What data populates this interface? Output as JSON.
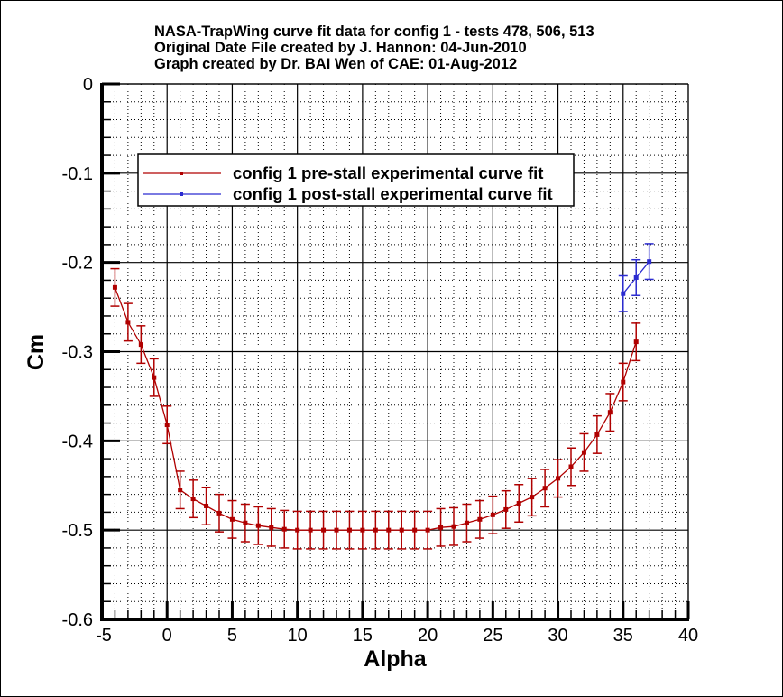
{
  "title_lines": [
    "NASA-TrapWing curve fit data for config 1 - tests 478, 506, 513",
    "Original Date File created by J. Hannon: 04-Jun-2010",
    "Graph created by Dr. BAI Wen of CAE: 01-Aug-2012"
  ],
  "colors": {
    "pre_stall": "#b00000",
    "post_stall": "#2b2bd0",
    "axis": "#000000",
    "grid": "#000000",
    "background": "#ffffff"
  },
  "chart_data": {
    "type": "line",
    "title": "NASA-TrapWing curve fit data for config 1 - tests 478, 506, 513",
    "subtitle": [
      "Original Date File created by J. Hannon: 04-Jun-2010",
      "Graph created by Dr. BAI Wen of CAE: 01-Aug-2012"
    ],
    "xlabel": "Alpha",
    "ylabel": "Cm",
    "xlim": [
      -5,
      40
    ],
    "ylim": [
      -0.6,
      0
    ],
    "xticks": [
      -5,
      0,
      5,
      10,
      15,
      20,
      25,
      30,
      35,
      40
    ],
    "yticks": [
      0,
      -0.1,
      -0.2,
      -0.3,
      -0.4,
      -0.5,
      -0.6
    ],
    "xtick_labels": [
      "-5",
      "0",
      "5",
      "10",
      "15",
      "20",
      "25",
      "30",
      "35",
      "40"
    ],
    "ytick_labels": [
      "0",
      "-0.1",
      "-0.2",
      "-0.3",
      "-0.4",
      "-0.5",
      "-0.6"
    ],
    "x_minor_step": 1,
    "y_minor_step": 0.02,
    "grid": true,
    "legend_position": "upper-left-inside",
    "error_bars": true,
    "series": [
      {
        "name": "config 1 pre-stall experimental curve fit",
        "color": "#b00000",
        "x": [
          -4,
          -3,
          -2,
          -1,
          0,
          1,
          2,
          3,
          4,
          5,
          6,
          7,
          8,
          9,
          10,
          11,
          12,
          13,
          14,
          15,
          16,
          17,
          18,
          19,
          20,
          21,
          22,
          23,
          24,
          25,
          26,
          27,
          28,
          29,
          30,
          31,
          32,
          33,
          34,
          35,
          36
        ],
        "values": [
          -0.228,
          -0.267,
          -0.292,
          -0.329,
          -0.382,
          -0.455,
          -0.465,
          -0.473,
          -0.481,
          -0.488,
          -0.492,
          -0.495,
          -0.497,
          -0.499,
          -0.5,
          -0.5,
          -0.5,
          -0.5,
          -0.5,
          -0.5,
          -0.5,
          -0.5,
          -0.5,
          -0.5,
          -0.5,
          -0.497,
          -0.496,
          -0.492,
          -0.488,
          -0.483,
          -0.477,
          -0.47,
          -0.463,
          -0.453,
          -0.442,
          -0.429,
          -0.413,
          -0.393,
          -0.368,
          -0.334,
          -0.289
        ],
        "error": 0.021
      },
      {
        "name": "config 1 post-stall experimental curve fit",
        "color": "#2b2bd0",
        "x": [
          35,
          36,
          37
        ],
        "values": [
          -0.235,
          -0.217,
          -0.199
        ],
        "error": 0.02
      }
    ]
  }
}
